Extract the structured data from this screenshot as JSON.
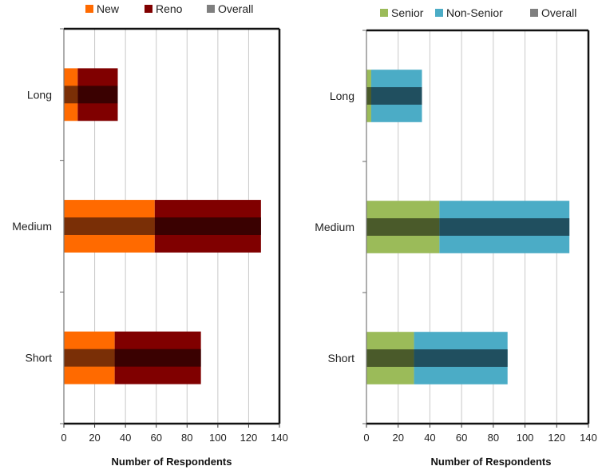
{
  "chart_data": [
    {
      "type": "bar",
      "orientation": "horizontal",
      "stacked": true,
      "overlay": true,
      "categories": [
        "Long",
        "Medium",
        "Short"
      ],
      "series": [
        {
          "name": "New",
          "values": [
            9,
            59,
            33
          ],
          "color": "#ff6a00"
        },
        {
          "name": "Reno",
          "values": [
            26,
            69,
            56
          ],
          "color": "#800000"
        },
        {
          "name": "Overall",
          "values": [
            35,
            128,
            89
          ],
          "color": "#7f7f7f"
        }
      ],
      "overall_segment_colors": [
        "#7a2f06",
        "#3a0101"
      ],
      "xlabel": "Number of Respondents",
      "ylabel": "",
      "xlim": [
        0,
        140
      ],
      "xticks": [
        "0",
        "20",
        "40",
        "60",
        "80",
        "100",
        "120",
        "140"
      ],
      "grid": true,
      "legend": "top"
    },
    {
      "type": "bar",
      "orientation": "horizontal",
      "stacked": true,
      "overlay": true,
      "categories": [
        "Long",
        "Medium",
        "Short"
      ],
      "series": [
        {
          "name": "Senior",
          "values": [
            3,
            46,
            30
          ],
          "color": "#9bbb59"
        },
        {
          "name": "Non-Senior",
          "values": [
            32,
            82,
            59
          ],
          "color": "#4bacc6"
        },
        {
          "name": "Overall",
          "values": [
            35,
            128,
            89
          ],
          "color": "#7f7f7f"
        }
      ],
      "overall_segment_colors": [
        "#4a5a2a",
        "#204f5f"
      ],
      "xlabel": "Number of Respondents",
      "ylabel": "",
      "xlim": [
        0,
        140
      ],
      "xticks": [
        "0",
        "20",
        "40",
        "60",
        "80",
        "100",
        "120",
        "140"
      ],
      "grid": true,
      "legend": "top"
    }
  ]
}
